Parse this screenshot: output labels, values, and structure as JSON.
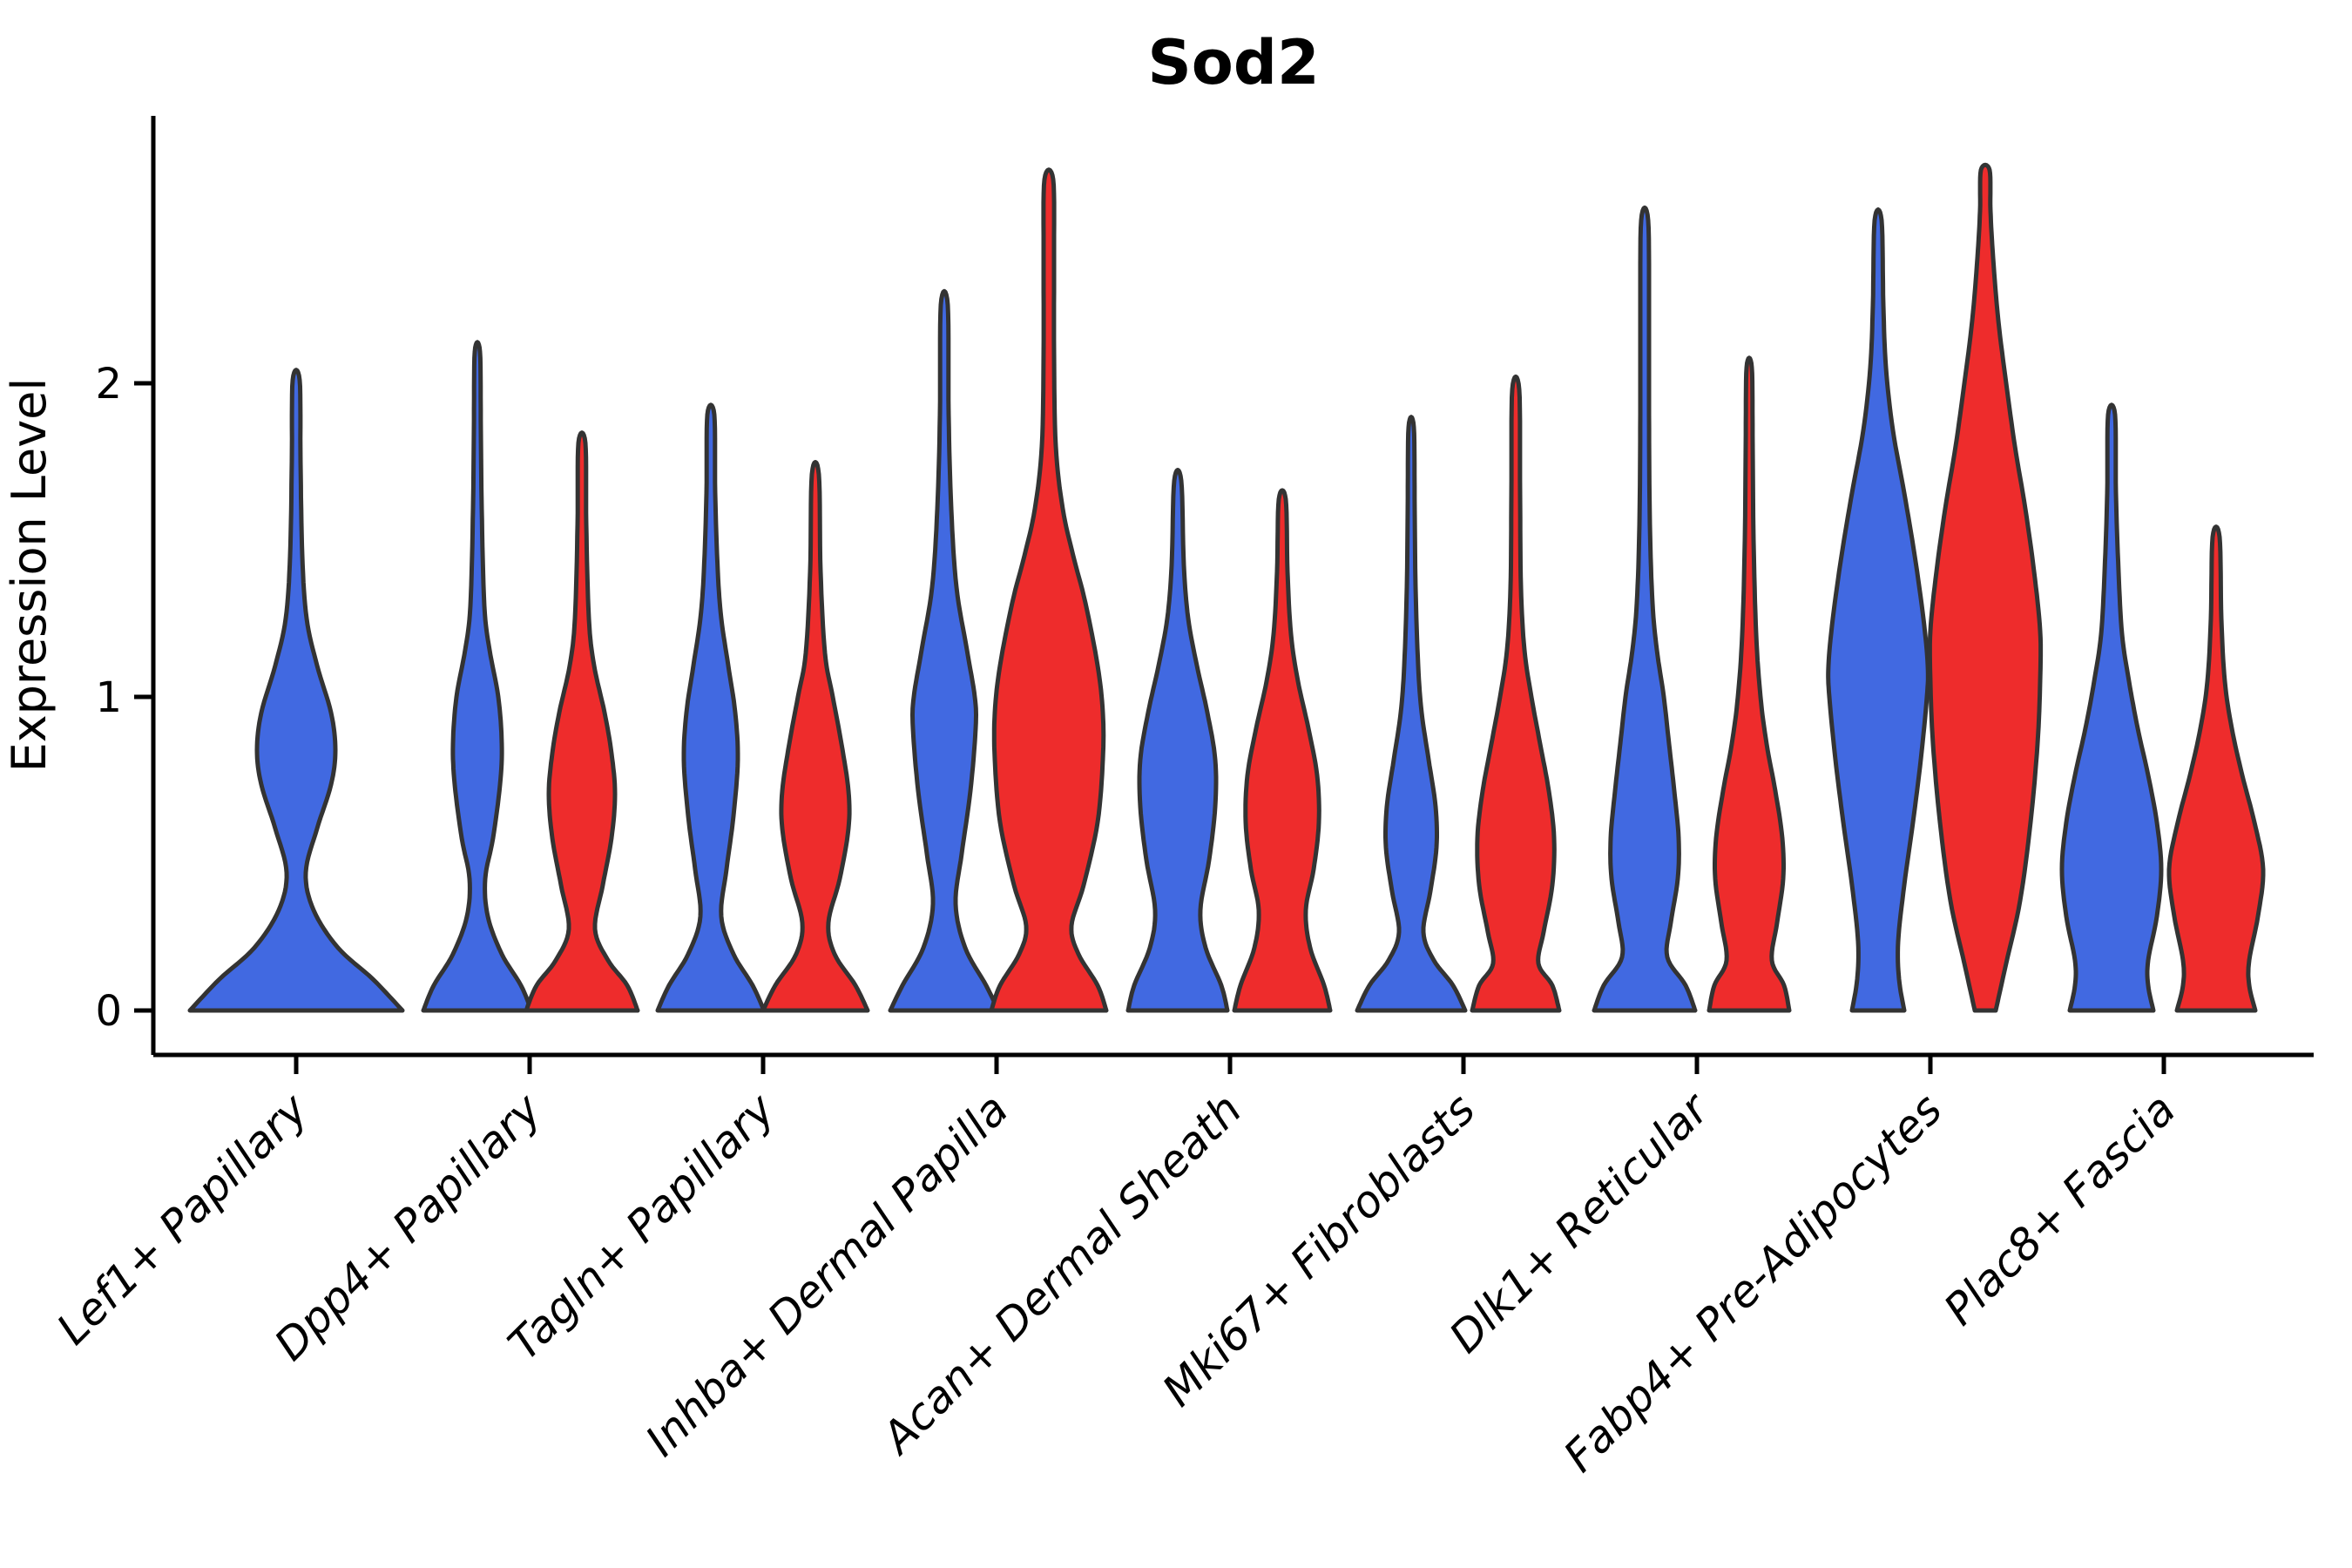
{
  "chart_data": {
    "type": "violin",
    "title": "Sod2",
    "ylabel": "Expression Level",
    "xlabel": "",
    "grid": false,
    "legend_position": "none",
    "ylim": [
      -0.14,
      2.85
    ],
    "yticks": [
      {
        "value": 0,
        "label": "0"
      },
      {
        "value": 1,
        "label": "1"
      },
      {
        "value": 2,
        "label": "2"
      }
    ],
    "categories": [
      "Lef1+ Papillary",
      "Dpp4+ Papillary",
      "Tagln+ Papillary",
      "Inhba+ Dermal Papilla",
      "Acan+ Dermal Sheath",
      "Mki67+ Fibroblasts",
      "Dlk1+ Reticular",
      "Fabp4+ Pre-Adipocytes",
      "Plac8+ Fascia"
    ],
    "series": [
      {
        "name": "blue-group",
        "color": "#4169E1"
      },
      {
        "name": "red-group",
        "color": "#EE2C2C"
      }
    ],
    "outline_color": "#333333",
    "violins": [
      {
        "category_index": 0,
        "series": "blue-group",
        "offset": 0,
        "max_expression": 2.01,
        "profile": [
          [
            0,
            122
          ],
          [
            0.1,
            88
          ],
          [
            0.2,
            48
          ],
          [
            0.32,
            20
          ],
          [
            0.44,
            11
          ],
          [
            0.58,
            24
          ],
          [
            0.72,
            40
          ],
          [
            0.83,
            45
          ],
          [
            0.95,
            40
          ],
          [
            1.1,
            24
          ],
          [
            1.25,
            12
          ],
          [
            1.45,
            7
          ],
          [
            1.75,
            5
          ],
          [
            2.01,
            4
          ]
        ]
      },
      {
        "category_index": 1,
        "series": "blue-group",
        "offset": -60,
        "max_expression": 2.1,
        "profile": [
          [
            0,
            62
          ],
          [
            0.08,
            50
          ],
          [
            0.18,
            28
          ],
          [
            0.3,
            12
          ],
          [
            0.42,
            9
          ],
          [
            0.55,
            18
          ],
          [
            0.72,
            26
          ],
          [
            0.85,
            28
          ],
          [
            1.0,
            24
          ],
          [
            1.15,
            14
          ],
          [
            1.29,
            8
          ],
          [
            1.6,
            5
          ],
          [
            1.85,
            4
          ],
          [
            2.1,
            3
          ]
        ]
      },
      {
        "category_index": 1,
        "series": "red-group",
        "offset": 60,
        "max_expression": 1.81,
        "profile": [
          [
            0,
            64
          ],
          [
            0.08,
            52
          ],
          [
            0.16,
            30
          ],
          [
            0.26,
            15
          ],
          [
            0.4,
            24
          ],
          [
            0.55,
            34
          ],
          [
            0.69,
            38
          ],
          [
            0.82,
            34
          ],
          [
            0.95,
            26
          ],
          [
            1.1,
            14
          ],
          [
            1.25,
            8
          ],
          [
            1.55,
            5
          ],
          [
            1.81,
            4
          ]
        ]
      },
      {
        "category_index": 2,
        "series": "blue-group",
        "offset": -60,
        "max_expression": 1.9,
        "profile": [
          [
            0,
            61
          ],
          [
            0.08,
            48
          ],
          [
            0.18,
            26
          ],
          [
            0.3,
            12
          ],
          [
            0.45,
            18
          ],
          [
            0.62,
            26
          ],
          [
            0.8,
            31
          ],
          [
            0.95,
            28
          ],
          [
            1.1,
            20
          ],
          [
            1.25,
            12
          ],
          [
            1.4,
            8
          ],
          [
            1.65,
            5
          ],
          [
            1.9,
            4
          ]
        ]
      },
      {
        "category_index": 2,
        "series": "red-group",
        "offset": 60,
        "max_expression": 1.71,
        "profile": [
          [
            0,
            60
          ],
          [
            0.08,
            46
          ],
          [
            0.18,
            22
          ],
          [
            0.28,
            15
          ],
          [
            0.42,
            28
          ],
          [
            0.58,
            38
          ],
          [
            0.7,
            38
          ],
          [
            0.85,
            30
          ],
          [
            1.0,
            20
          ],
          [
            1.14,
            11
          ],
          [
            1.4,
            6
          ],
          [
            1.71,
            4
          ]
        ]
      },
      {
        "category_index": 3,
        "series": "blue-group",
        "offset": -60,
        "max_expression": 2.25,
        "profile": [
          [
            0,
            62
          ],
          [
            0.08,
            48
          ],
          [
            0.2,
            24
          ],
          [
            0.34,
            13
          ],
          [
            0.5,
            20
          ],
          [
            0.7,
            30
          ],
          [
            0.9,
            36
          ],
          [
            1.0,
            35
          ],
          [
            1.15,
            26
          ],
          [
            1.35,
            14
          ],
          [
            1.6,
            8
          ],
          [
            1.9,
            5
          ],
          [
            2.25,
            4
          ]
        ]
      },
      {
        "category_index": 3,
        "series": "red-group",
        "offset": 60,
        "max_expression": 2.65,
        "profile": [
          [
            0,
            66
          ],
          [
            0.08,
            56
          ],
          [
            0.18,
            34
          ],
          [
            0.27,
            26
          ],
          [
            0.4,
            40
          ],
          [
            0.6,
            56
          ],
          [
            0.8,
            62
          ],
          [
            0.95,
            62
          ],
          [
            1.1,
            56
          ],
          [
            1.3,
            42
          ],
          [
            1.45,
            28
          ],
          [
            1.6,
            16
          ],
          [
            1.8,
            8
          ],
          [
            2.1,
            6
          ],
          [
            2.4,
            6
          ],
          [
            2.65,
            5
          ]
        ]
      },
      {
        "category_index": 4,
        "series": "blue-group",
        "offset": -60,
        "max_expression": 1.69,
        "profile": [
          [
            0,
            57
          ],
          [
            0.08,
            50
          ],
          [
            0.2,
            32
          ],
          [
            0.32,
            26
          ],
          [
            0.48,
            36
          ],
          [
            0.65,
            43
          ],
          [
            0.8,
            43
          ],
          [
            0.95,
            34
          ],
          [
            1.1,
            22
          ],
          [
            1.25,
            12
          ],
          [
            1.42,
            7
          ],
          [
            1.69,
            4
          ]
        ]
      },
      {
        "category_index": 4,
        "series": "red-group",
        "offset": 60,
        "max_expression": 1.63,
        "profile": [
          [
            0,
            55
          ],
          [
            0.08,
            48
          ],
          [
            0.2,
            32
          ],
          [
            0.32,
            27
          ],
          [
            0.45,
            36
          ],
          [
            0.6,
            42
          ],
          [
            0.75,
            40
          ],
          [
            0.9,
            30
          ],
          [
            1.05,
            18
          ],
          [
            1.2,
            10
          ],
          [
            1.4,
            6
          ],
          [
            1.63,
            4
          ]
        ]
      },
      {
        "category_index": 5,
        "series": "blue-group",
        "offset": -60,
        "max_expression": 1.86,
        "profile": [
          [
            0,
            62
          ],
          [
            0.08,
            48
          ],
          [
            0.16,
            26
          ],
          [
            0.25,
            14
          ],
          [
            0.38,
            22
          ],
          [
            0.52,
            29
          ],
          [
            0.65,
            28
          ],
          [
            0.8,
            20
          ],
          [
            0.95,
            12
          ],
          [
            1.1,
            8
          ],
          [
            1.35,
            5
          ],
          [
            1.6,
            4
          ],
          [
            1.86,
            3
          ]
        ]
      },
      {
        "category_index": 5,
        "series": "red-group",
        "offset": 60,
        "max_expression": 1.98,
        "profile": [
          [
            0,
            50
          ],
          [
            0.08,
            42
          ],
          [
            0.15,
            26
          ],
          [
            0.25,
            32
          ],
          [
            0.4,
            42
          ],
          [
            0.55,
            44
          ],
          [
            0.7,
            38
          ],
          [
            0.85,
            28
          ],
          [
            1.0,
            18
          ],
          [
            1.15,
            10
          ],
          [
            1.35,
            6
          ],
          [
            1.65,
            5
          ],
          [
            1.98,
            4
          ]
        ]
      },
      {
        "category_index": 6,
        "series": "blue-group",
        "offset": -60,
        "max_expression": 2.52,
        "profile": [
          [
            0,
            58
          ],
          [
            0.08,
            47
          ],
          [
            0.17,
            26
          ],
          [
            0.28,
            30
          ],
          [
            0.42,
            38
          ],
          [
            0.55,
            39
          ],
          [
            0.7,
            34
          ],
          [
            0.85,
            28
          ],
          [
            1.0,
            22
          ],
          [
            1.15,
            14
          ],
          [
            1.3,
            9
          ],
          [
            1.55,
            6
          ],
          [
            1.9,
            5
          ],
          [
            2.2,
            5
          ],
          [
            2.52,
            4
          ]
        ]
      },
      {
        "category_index": 6,
        "series": "red-group",
        "offset": 60,
        "max_expression": 2.05,
        "profile": [
          [
            0,
            46
          ],
          [
            0.08,
            40
          ],
          [
            0.16,
            26
          ],
          [
            0.28,
            32
          ],
          [
            0.42,
            39
          ],
          [
            0.55,
            38
          ],
          [
            0.7,
            30
          ],
          [
            0.85,
            20
          ],
          [
            1.0,
            13
          ],
          [
            1.2,
            8
          ],
          [
            1.5,
            5
          ],
          [
            1.8,
            4
          ],
          [
            2.05,
            3
          ]
        ]
      },
      {
        "category_index": 7,
        "series": "blue-group",
        "offset": -60,
        "max_expression": 2.52,
        "profile": [
          [
            0,
            30
          ],
          [
            0.1,
            24
          ],
          [
            0.22,
            23
          ],
          [
            0.4,
            30
          ],
          [
            0.6,
            40
          ],
          [
            0.8,
            49
          ],
          [
            1.0,
            56
          ],
          [
            1.1,
            57
          ],
          [
            1.25,
            52
          ],
          [
            1.45,
            42
          ],
          [
            1.65,
            30
          ],
          [
            1.85,
            17
          ],
          [
            2.05,
            9
          ],
          [
            2.25,
            6
          ],
          [
            2.52,
            4
          ]
        ]
      },
      {
        "category_index": 7,
        "series": "red-group",
        "offset": 63,
        "max_expression": 2.68,
        "profile": [
          [
            0,
            12
          ],
          [
            0.15,
            24
          ],
          [
            0.35,
            40
          ],
          [
            0.6,
            52
          ],
          [
            0.85,
            60
          ],
          [
            1.05,
            63
          ],
          [
            1.21,
            63
          ],
          [
            1.4,
            56
          ],
          [
            1.6,
            46
          ],
          [
            1.8,
            34
          ],
          [
            2.0,
            24
          ],
          [
            2.2,
            15
          ],
          [
            2.4,
            9
          ],
          [
            2.55,
            6
          ],
          [
            2.68,
            5
          ]
        ]
      },
      {
        "category_index": 8,
        "series": "blue-group",
        "offset": -60,
        "max_expression": 1.9,
        "profile": [
          [
            0,
            48
          ],
          [
            0.08,
            42
          ],
          [
            0.16,
            42
          ],
          [
            0.3,
            52
          ],
          [
            0.45,
            57
          ],
          [
            0.6,
            52
          ],
          [
            0.75,
            42
          ],
          [
            0.9,
            30
          ],
          [
            1.05,
            20
          ],
          [
            1.2,
            12
          ],
          [
            1.4,
            8
          ],
          [
            1.65,
            5
          ],
          [
            1.9,
            4
          ]
        ]
      },
      {
        "category_index": 8,
        "series": "red-group",
        "offset": 60,
        "max_expression": 1.51,
        "profile": [
          [
            0,
            45
          ],
          [
            0.08,
            38
          ],
          [
            0.16,
            38
          ],
          [
            0.3,
            48
          ],
          [
            0.45,
            54
          ],
          [
            0.6,
            44
          ],
          [
            0.75,
            30
          ],
          [
            0.9,
            18
          ],
          [
            1.05,
            10
          ],
          [
            1.25,
            6
          ],
          [
            1.51,
            4
          ]
        ]
      }
    ]
  }
}
